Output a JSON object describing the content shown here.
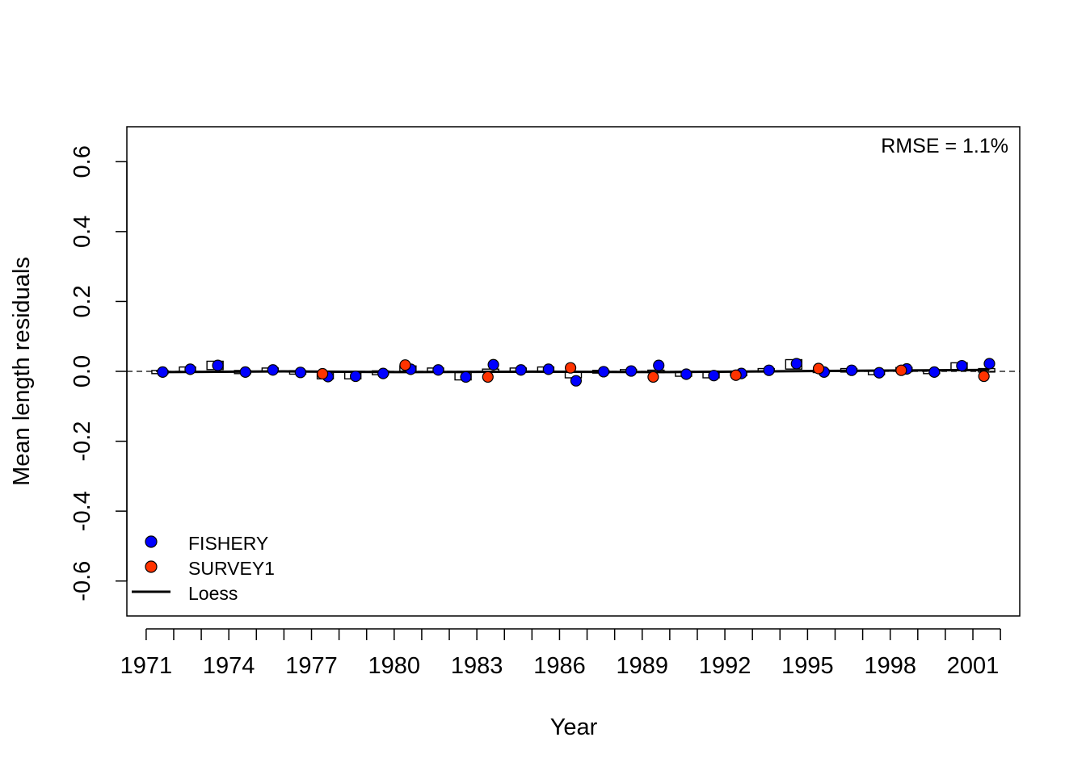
{
  "chart_data": {
    "type": "scatter",
    "title": "",
    "xlabel": "Year",
    "ylabel": "Mean length residuals",
    "annotation": "RMSE = 1.1%",
    "xlim": [
      1970.3,
      2002.7
    ],
    "ylim": [
      -0.7,
      0.7
    ],
    "x_ticks": [
      1971,
      1972,
      1973,
      1974,
      1975,
      1976,
      1977,
      1978,
      1979,
      1980,
      1981,
      1982,
      1983,
      1984,
      1985,
      1986,
      1987,
      1988,
      1989,
      1990,
      1991,
      1992,
      1993,
      1994,
      1995,
      1996,
      1997,
      1998,
      1999,
      2000,
      2001,
      2002
    ],
    "x_tick_labels": [
      {
        "x": 1971,
        "label": "1971"
      },
      {
        "x": 1974,
        "label": "1974"
      },
      {
        "x": 1977,
        "label": "1977"
      },
      {
        "x": 1980,
        "label": "1980"
      },
      {
        "x": 1983,
        "label": "1983"
      },
      {
        "x": 1986,
        "label": "1986"
      },
      {
        "x": 1989,
        "label": "1989"
      },
      {
        "x": 1992,
        "label": "1992"
      },
      {
        "x": 1995,
        "label": "1995"
      },
      {
        "x": 1998,
        "label": "1998"
      },
      {
        "x": 2001,
        "label": "2001"
      }
    ],
    "y_ticks": [
      {
        "value": -0.6,
        "label": "-0.6"
      },
      {
        "value": -0.4,
        "label": "-0.4"
      },
      {
        "value": -0.2,
        "label": "-0.2"
      },
      {
        "value": 0.0,
        "label": "0.0"
      },
      {
        "value": 0.2,
        "label": "0.2"
      },
      {
        "value": 0.4,
        "label": "0.4"
      },
      {
        "value": 0.6,
        "label": "0.6"
      }
    ],
    "zero_line": "dashed",
    "legend": {
      "position": "bottom-left",
      "entries": [
        {
          "label": "FISHERY",
          "symbol": "point",
          "color": "#0000FF"
        },
        {
          "label": "SURVEY1",
          "symbol": "point",
          "color": "#FF3300"
        },
        {
          "label": "Loess",
          "symbol": "line",
          "color": "#000000"
        }
      ]
    },
    "series": [
      {
        "name": "FISHERY",
        "color": "#0000FF",
        "points": [
          {
            "x": 1971.6,
            "y": -0.002
          },
          {
            "x": 1972.6,
            "y": 0.006
          },
          {
            "x": 1973.6,
            "y": 0.017
          },
          {
            "x": 1974.6,
            "y": -0.002
          },
          {
            "x": 1975.6,
            "y": 0.004
          },
          {
            "x": 1976.6,
            "y": -0.003
          },
          {
            "x": 1977.6,
            "y": -0.015
          },
          {
            "x": 1978.6,
            "y": -0.014
          },
          {
            "x": 1979.6,
            "y": -0.006
          },
          {
            "x": 1980.6,
            "y": 0.006
          },
          {
            "x": 1981.6,
            "y": 0.004
          },
          {
            "x": 1982.6,
            "y": -0.016
          },
          {
            "x": 1983.6,
            "y": 0.019
          },
          {
            "x": 1984.6,
            "y": 0.004
          },
          {
            "x": 1985.6,
            "y": 0.006
          },
          {
            "x": 1986.6,
            "y": -0.027
          },
          {
            "x": 1987.6,
            "y": -0.001
          },
          {
            "x": 1988.6,
            "y": 0.001
          },
          {
            "x": 1989.6,
            "y": 0.017
          },
          {
            "x": 1990.6,
            "y": -0.008
          },
          {
            "x": 1991.6,
            "y": -0.012
          },
          {
            "x": 1992.6,
            "y": -0.006
          },
          {
            "x": 1993.6,
            "y": 0.003
          },
          {
            "x": 1994.6,
            "y": 0.022
          },
          {
            "x": 1995.6,
            "y": -0.002
          },
          {
            "x": 1996.6,
            "y": 0.003
          },
          {
            "x": 1997.6,
            "y": -0.004
          },
          {
            "x": 1998.6,
            "y": 0.007
          },
          {
            "x": 1999.6,
            "y": -0.002
          },
          {
            "x": 2000.6,
            "y": 0.016
          },
          {
            "x": 2001.6,
            "y": 0.022
          }
        ],
        "boxes": [
          {
            "x": 1971.5,
            "y": -0.002
          },
          {
            "x": 1972.5,
            "y": 0.006
          },
          {
            "x": 1973.5,
            "y": 0.017
          },
          {
            "x": 1974.5,
            "y": -0.002
          },
          {
            "x": 1975.5,
            "y": 0.004
          },
          {
            "x": 1976.5,
            "y": -0.003
          },
          {
            "x": 1977.5,
            "y": -0.012
          },
          {
            "x": 1978.5,
            "y": -0.012
          },
          {
            "x": 1979.5,
            "y": -0.004
          },
          {
            "x": 1980.5,
            "y": 0.008
          },
          {
            "x": 1981.5,
            "y": 0.004
          },
          {
            "x": 1982.5,
            "y": -0.014
          },
          {
            "x": 1983.5,
            "y": 0.002
          },
          {
            "x": 1984.5,
            "y": 0.004
          },
          {
            "x": 1985.5,
            "y": 0.006
          },
          {
            "x": 1986.5,
            "y": -0.01
          },
          {
            "x": 1987.5,
            "y": -0.001
          },
          {
            "x": 1988.5,
            "y": 0.001
          },
          {
            "x": 1989.5,
            "y": 0.0
          },
          {
            "x": 1990.5,
            "y": -0.007
          },
          {
            "x": 1991.5,
            "y": -0.01
          },
          {
            "x": 1992.5,
            "y": -0.006
          },
          {
            "x": 1993.5,
            "y": 0.003
          },
          {
            "x": 1994.5,
            "y": 0.02
          },
          {
            "x": 1995.5,
            "y": 0.0
          },
          {
            "x": 1996.5,
            "y": 0.003
          },
          {
            "x": 1997.5,
            "y": -0.004
          },
          {
            "x": 1998.5,
            "y": 0.005
          },
          {
            "x": 1999.5,
            "y": -0.002
          },
          {
            "x": 2000.5,
            "y": 0.014
          },
          {
            "x": 2001.5,
            "y": 0.003
          }
        ]
      },
      {
        "name": "SURVEY1",
        "color": "#FF3300",
        "points": [
          {
            "x": 1977.4,
            "y": -0.007
          },
          {
            "x": 1980.4,
            "y": 0.018
          },
          {
            "x": 1983.4,
            "y": -0.016
          },
          {
            "x": 1986.4,
            "y": 0.01
          },
          {
            "x": 1989.4,
            "y": -0.016
          },
          {
            "x": 1992.4,
            "y": -0.011
          },
          {
            "x": 1995.4,
            "y": 0.008
          },
          {
            "x": 1998.4,
            "y": 0.003
          },
          {
            "x": 2001.4,
            "y": -0.014
          }
        ]
      }
    ],
    "loess": [
      {
        "x": 1971.6,
        "y": -0.002
      },
      {
        "x": 1976.0,
        "y": 0.0
      },
      {
        "x": 1980.0,
        "y": -0.002
      },
      {
        "x": 1985.0,
        "y": -0.001
      },
      {
        "x": 1990.0,
        "y": -0.002
      },
      {
        "x": 1995.0,
        "y": 0.001
      },
      {
        "x": 2001.6,
        "y": 0.004
      }
    ]
  }
}
